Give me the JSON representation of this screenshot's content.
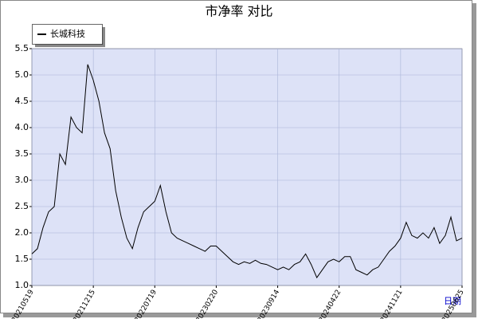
{
  "chart_data": {
    "type": "line",
    "title": "市净率  对比",
    "x_label": "日期",
    "xlim": [
      0,
      77
    ],
    "xticks": [
      {
        "value": 0,
        "label": "20210519"
      },
      {
        "value": 11,
        "label": "20211215"
      },
      {
        "value": 22,
        "label": "20220719"
      },
      {
        "value": 33,
        "label": "20230220"
      },
      {
        "value": 44,
        "label": "20230914"
      },
      {
        "value": 55,
        "label": "20240422"
      },
      {
        "value": 66,
        "label": "20241121"
      },
      {
        "value": 77,
        "label": "20250625"
      }
    ],
    "ylim": [
      1,
      5.5
    ],
    "yticks": [
      {
        "value": 1,
        "label": "1.0"
      },
      1.5,
      {
        "value": 2,
        "label": "2.0"
      },
      2.5,
      {
        "value": 3,
        "label": "3.0"
      },
      3.5,
      {
        "value": 4,
        "label": "4.0"
      },
      4.5,
      {
        "value": 5,
        "label": "5.0"
      },
      5.5
    ],
    "grid": true,
    "series": [
      {
        "name": "长城科技",
        "color": "#000000",
        "values": [
          1.6,
          1.7,
          2.1,
          2.4,
          2.5,
          3.5,
          3.3,
          4.2,
          4.0,
          3.9,
          5.2,
          4.9,
          4.5,
          3.9,
          3.6,
          2.8,
          2.3,
          1.9,
          1.7,
          2.1,
          2.4,
          2.5,
          2.6,
          2.9,
          2.4,
          2.0,
          1.9,
          1.85,
          1.8,
          1.75,
          1.7,
          1.65,
          1.75,
          1.75,
          1.65,
          1.55,
          1.45,
          1.4,
          1.45,
          1.42,
          1.48,
          1.42,
          1.4,
          1.35,
          1.3,
          1.35,
          1.3,
          1.4,
          1.45,
          1.6,
          1.4,
          1.15,
          1.3,
          1.45,
          1.5,
          1.45,
          1.55,
          1.55,
          1.3,
          1.25,
          1.2,
          1.3,
          1.35,
          1.5,
          1.65,
          1.75,
          1.9,
          2.2,
          1.95,
          1.9,
          2.0,
          1.9,
          2.1,
          1.8,
          1.95,
          2.3,
          1.85,
          1.9
        ]
      }
    ]
  }
}
